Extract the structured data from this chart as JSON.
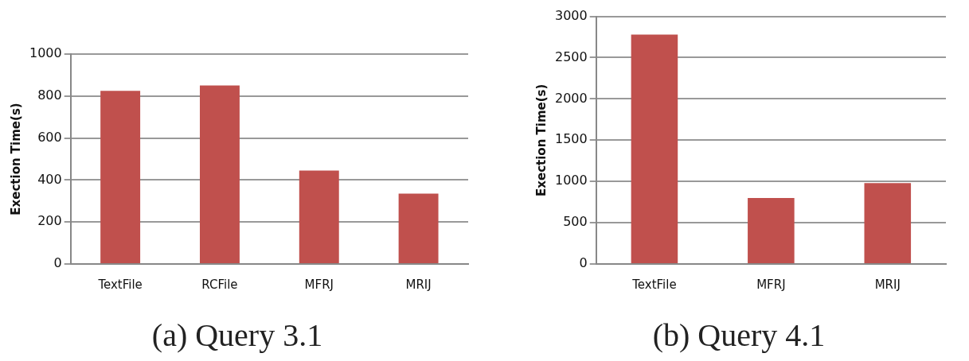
{
  "chart_data": [
    {
      "type": "bar",
      "title": "(a) Query 3.1",
      "ylabel": "Exection Time(s)",
      "categories": [
        "TextFile",
        "RCFile",
        "MFRJ",
        "MRIJ"
      ],
      "values": [
        825,
        850,
        445,
        335
      ],
      "color": "#c0504d",
      "ylim": [
        0,
        1000
      ],
      "yticks": [
        0,
        200,
        400,
        600,
        800,
        1000
      ],
      "grid": "y"
    },
    {
      "type": "bar",
      "title": "(b) Query 4.1",
      "ylabel": "Exection Time(s)",
      "categories": [
        "TextFile",
        "MFRJ",
        "MRIJ"
      ],
      "values": [
        2780,
        800,
        980
      ],
      "color": "#c0504d",
      "ylim": [
        0,
        3000
      ],
      "yticks": [
        0,
        500,
        1000,
        1500,
        2000,
        2500,
        3000
      ],
      "grid": "y"
    }
  ]
}
